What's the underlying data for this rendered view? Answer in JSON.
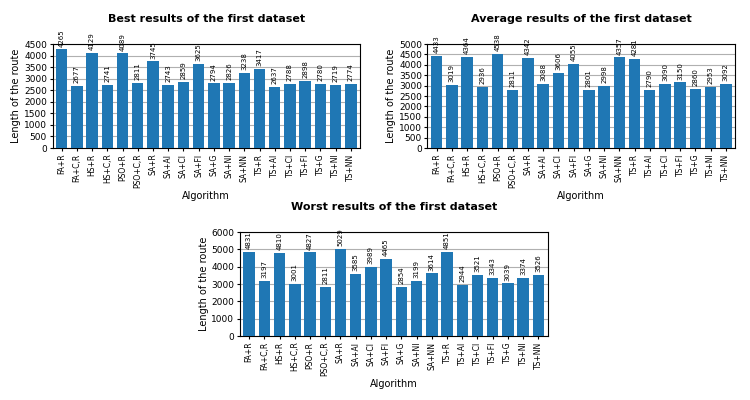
{
  "chart_data": [
    {
      "type": "bar",
      "title": "Best results of the first dataset",
      "xlabel": "Algorithm",
      "ylabel": "Length of the route",
      "categories": [
        "FA+R",
        "FA+C,R",
        "HS+R",
        "HS+C,R",
        "PSO+R",
        "PSO+C,R",
        "SA+R",
        "SA+Al",
        "SA+Cl",
        "SA+Fl",
        "SA+G",
        "SA+Nl",
        "SA+NN",
        "TS+R",
        "TS+Al",
        "TS+Cl",
        "TS+Fl",
        "TS+G",
        "TS+Nl",
        "TS+NN"
      ],
      "values": [
        4265,
        2677,
        4129,
        2741,
        4089,
        2811,
        3745,
        2743,
        2859,
        3625,
        2794,
        2826,
        3238,
        3417,
        2637,
        2788,
        2898,
        2780,
        2719,
        2774
      ],
      "ylim": [
        0,
        4500
      ],
      "yticks": [
        0,
        500,
        1000,
        1500,
        2000,
        2500,
        3000,
        3500,
        4000,
        4500
      ],
      "grid": true,
      "data_labels": true
    },
    {
      "type": "bar",
      "title": "Average results of the first dataset",
      "xlabel": "Algorithm",
      "ylabel": "Length of the route",
      "categories": [
        "FA+R",
        "FA+C,R",
        "HS+R",
        "HS+C,R",
        "PSO+R",
        "PSO+C,R",
        "SA+R",
        "SA+Al",
        "SA+Cl",
        "SA+Fl",
        "SA+G",
        "SA+Nl",
        "SA+NN",
        "TS+R",
        "TS+Al",
        "TS+Cl",
        "TS+Fl",
        "TS+G",
        "TS+Nl",
        "TS+NN"
      ],
      "values": [
        4433,
        3019,
        4364,
        2936,
        4538,
        2811,
        4342,
        3088,
        3606,
        4055,
        2801,
        2998,
        4357,
        4281,
        2790,
        3090,
        3150,
        2860,
        2953,
        3092
      ],
      "ylim": [
        0,
        5000
      ],
      "yticks": [
        0,
        500,
        1000,
        1500,
        2000,
        2500,
        3000,
        3500,
        4000,
        4500,
        5000
      ],
      "grid": true,
      "data_labels": true
    },
    {
      "type": "bar",
      "title": "Worst results of the first dataset",
      "xlabel": "Algorithm",
      "ylabel": "Length of the route",
      "categories": [
        "FA+R",
        "FA+C,R",
        "HS+R",
        "HS+C,R",
        "PSO+R",
        "PSO+C,R",
        "SA+R",
        "SA+Al",
        "SA+Cl",
        "SA+Fl",
        "SA+G",
        "SA+Nl",
        "SA+NN",
        "TS+R",
        "TS+Al",
        "TS+Cl",
        "TS+Fl",
        "TS+G",
        "TS+Nl",
        "TS+NN"
      ],
      "values": [
        4831,
        3197,
        4810,
        3001,
        4827,
        2811,
        5029,
        3585,
        3989,
        4465,
        2854,
        3199,
        3614,
        4851,
        2944,
        3521,
        3343,
        3039,
        3374,
        3526
      ],
      "ylim": [
        0,
        6000
      ],
      "yticks": [
        0,
        1000,
        2000,
        3000,
        4000,
        5000,
        6000
      ],
      "grid": true,
      "data_labels": true
    }
  ]
}
